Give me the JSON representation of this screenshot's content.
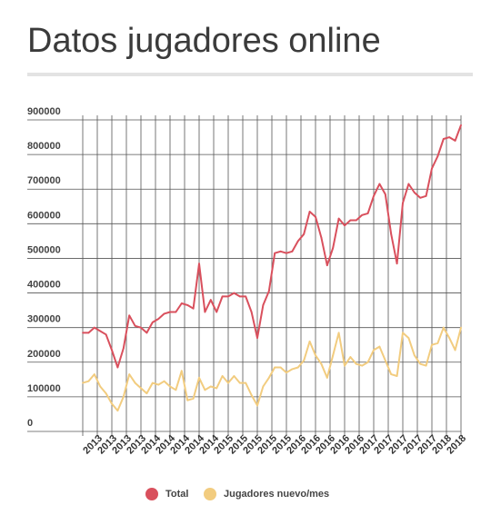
{
  "title": "Datos jugadores online",
  "colors": {
    "total": "#d9505d",
    "nuevos": "#f2cc7f",
    "grid": "#555555"
  },
  "chart_data": {
    "type": "line",
    "title": "Datos jugadores online",
    "xlabel": "",
    "ylabel": "",
    "ylim": [
      0,
      900000
    ],
    "yticks": [
      0,
      100000,
      200000,
      300000,
      400000,
      500000,
      600000,
      700000,
      800000,
      900000
    ],
    "ytick_labels": [
      "0",
      "100000",
      "200000",
      "300000",
      "400000",
      "500000",
      "600000",
      "700000",
      "800000",
      "900000"
    ],
    "x_tick_labels": [
      "2013",
      "2013",
      "2013",
      "2013",
      "2013",
      "2014",
      "2014",
      "2014",
      "2014",
      "2014",
      "2015",
      "2015",
      "2015",
      "2015",
      "2015",
      "2016",
      "2016",
      "2016",
      "2016",
      "2016",
      "2017",
      "2017",
      "2017",
      "2017",
      "2017",
      "2018",
      "2018"
    ],
    "grid": true,
    "legend_position": "bottom",
    "series": [
      {
        "name": "Total",
        "values": [
          285000,
          285000,
          300000,
          290000,
          280000,
          235000,
          185000,
          240000,
          335000,
          305000,
          300000,
          285000,
          315000,
          325000,
          340000,
          345000,
          345000,
          370000,
          365000,
          355000,
          485000,
          345000,
          380000,
          345000,
          390000,
          390000,
          400000,
          390000,
          390000,
          345000,
          270000,
          365000,
          405000,
          515000,
          520000,
          515000,
          520000,
          550000,
          570000,
          635000,
          620000,
          560000,
          480000,
          530000,
          615000,
          595000,
          610000,
          610000,
          625000,
          630000,
          680000,
          715000,
          685000,
          570000,
          485000,
          660000,
          715000,
          690000,
          675000,
          680000,
          760000,
          795000,
          845000,
          850000,
          840000,
          885000
        ]
      },
      {
        "name": "Jugadores nuevo/mes",
        "values": [
          140000,
          145000,
          165000,
          130000,
          110000,
          80000,
          60000,
          100000,
          165000,
          140000,
          125000,
          110000,
          140000,
          135000,
          145000,
          130000,
          120000,
          175000,
          90000,
          95000,
          155000,
          120000,
          130000,
          125000,
          160000,
          140000,
          160000,
          140000,
          140000,
          105000,
          75000,
          130000,
          155000,
          185000,
          185000,
          170000,
          180000,
          185000,
          205000,
          260000,
          220000,
          195000,
          155000,
          220000,
          285000,
          190000,
          215000,
          195000,
          190000,
          200000,
          235000,
          245000,
          205000,
          165000,
          160000,
          285000,
          270000,
          220000,
          195000,
          190000,
          250000,
          255000,
          300000,
          270000,
          235000,
          300000
        ]
      }
    ]
  },
  "legend": {
    "items": [
      {
        "label": "Total",
        "color": "#d9505d"
      },
      {
        "label": "Jugadores nuevo/mes",
        "color": "#f2cc7f"
      }
    ]
  }
}
